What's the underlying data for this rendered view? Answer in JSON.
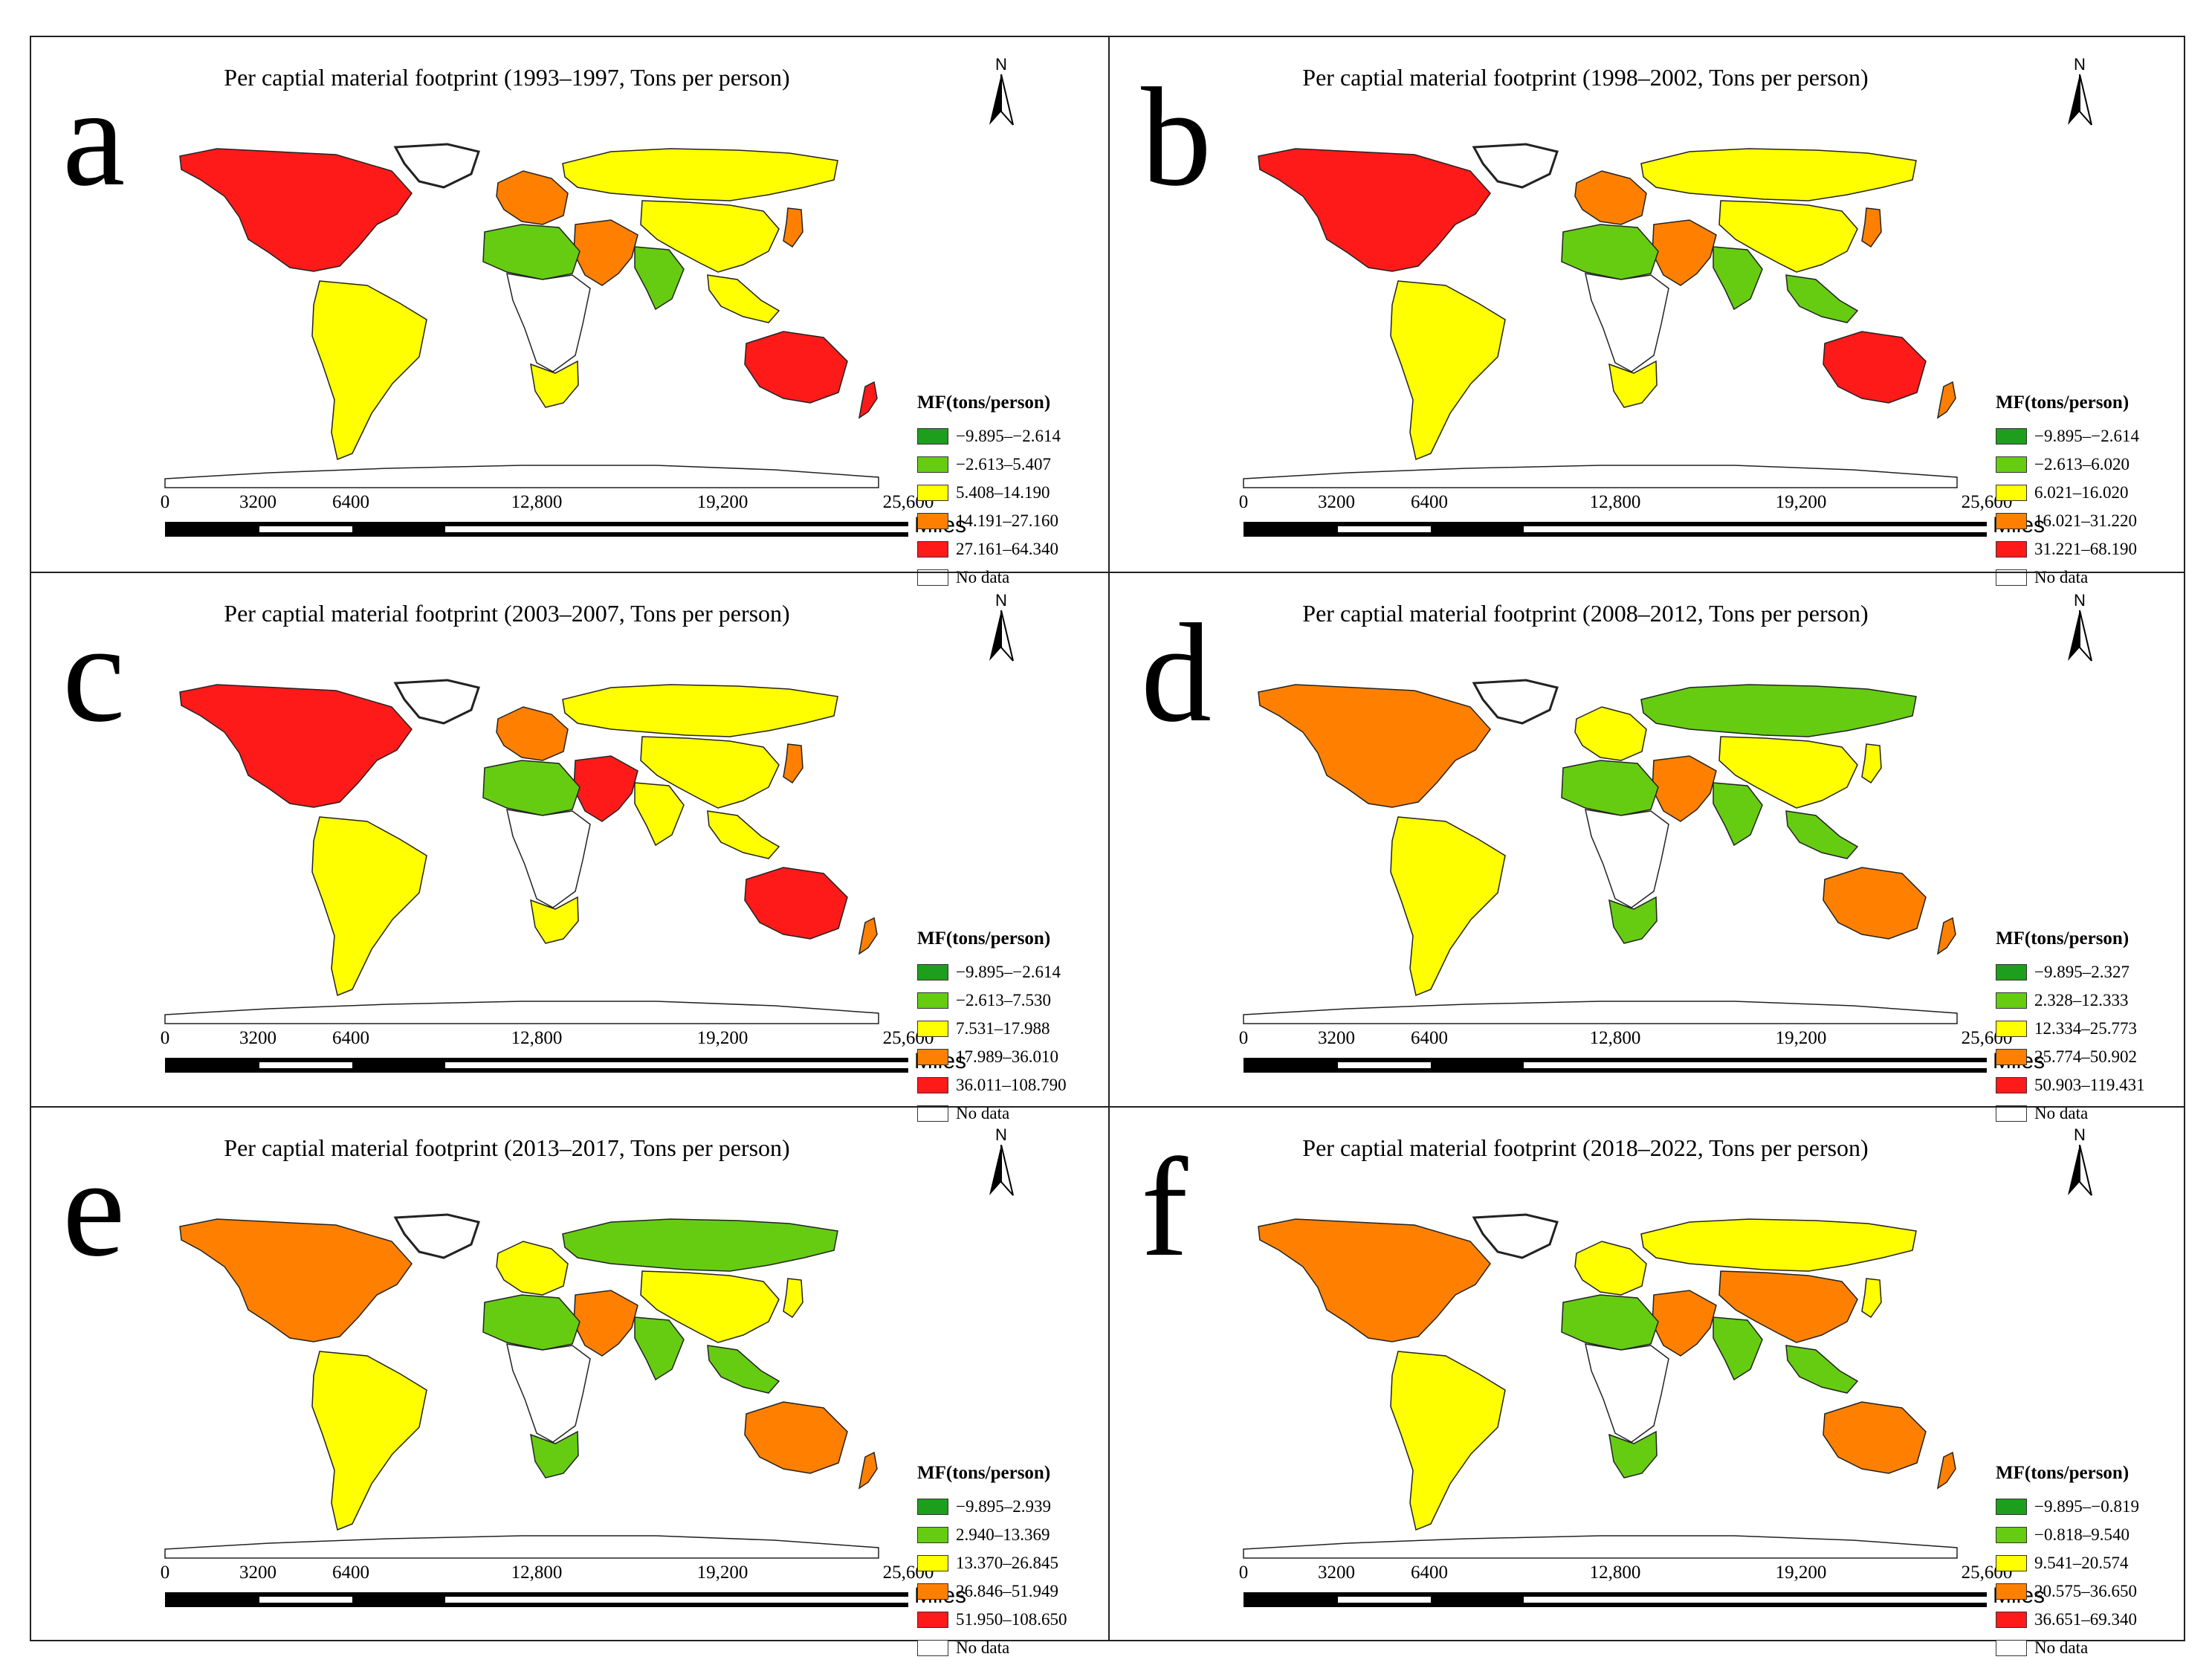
{
  "figure": {
    "legend_title": "MF(tons/person)",
    "no_data_label": "No data",
    "scale_ticks": [
      "0",
      "3200",
      "6400",
      "12,800",
      "19,200",
      "25,600"
    ],
    "scale_unit": "Miles",
    "north_label": "N",
    "colors": {
      "class1": "#1d9e1d",
      "class2": "#66cc12",
      "class3": "#ffff00",
      "class4": "#ff8000",
      "class5": "#ff1a1a",
      "no_data": "#ffffff"
    }
  },
  "panels": [
    {
      "letter": "a",
      "title": "Per captial material footprint (1993–1997, Tons per person)",
      "legend": [
        "−9.895–−2.614",
        "−2.613–5.407",
        "5.408–14.190",
        "14.191–27.160",
        "27.161–64.340"
      ]
    },
    {
      "letter": "b",
      "title": "Per captial material footprint (1998–2002, Tons per person)",
      "legend": [
        "−9.895–−2.614",
        "−2.613–6.020",
        "6.021–16.020",
        "16.021–31.220",
        "31.221–68.190"
      ]
    },
    {
      "letter": "c",
      "title": "Per captial material footprint (2003–2007, Tons per person)",
      "legend": [
        "−9.895–−2.614",
        "−2.613–7.530",
        "7.531–17.988",
        "17.989–36.010",
        "36.011–108.790"
      ]
    },
    {
      "letter": "d",
      "title": "Per captial material footprint (2008–2012, Tons per person)",
      "legend": [
        "−9.895–2.327",
        "2.328–12.333",
        "12.334–25.773",
        "25.774–50.902",
        "50.903–119.431"
      ]
    },
    {
      "letter": "e",
      "title": "Per captial material footprint (2013–2017, Tons per person)",
      "legend": [
        "−9.895–2.939",
        "2.940–13.369",
        "13.370–26.845",
        "26.846–51.949",
        "51.950–108.650"
      ]
    },
    {
      "letter": "f",
      "title": "Per captial material footprint (2018–2022, Tons per person)",
      "legend": [
        "−9.895–−0.819",
        "−0.818–9.540",
        "9.541–20.574",
        "20.575–36.650",
        "36.651–69.340"
      ]
    }
  ],
  "region_classes": [
    {
      "na": 5,
      "sam": 3,
      "eu": 4,
      "rus": 3,
      "asia": 3,
      "india": 2,
      "mideast": 4,
      "afr_n": 2,
      "safr": 3,
      "aus": 5,
      "nz": 5,
      "japan": 4,
      "sea": 3
    },
    {
      "na": 5,
      "sam": 3,
      "eu": 4,
      "rus": 3,
      "asia": 3,
      "india": 2,
      "mideast": 4,
      "afr_n": 2,
      "safr": 3,
      "aus": 5,
      "nz": 4,
      "japan": 4,
      "sea": 2
    },
    {
      "na": 5,
      "sam": 3,
      "eu": 4,
      "rus": 3,
      "asia": 3,
      "india": 3,
      "mideast": 5,
      "afr_n": 2,
      "safr": 3,
      "aus": 5,
      "nz": 4,
      "japan": 4,
      "sea": 3
    },
    {
      "na": 4,
      "sam": 3,
      "eu": 3,
      "rus": 2,
      "asia": 3,
      "india": 2,
      "mideast": 4,
      "afr_n": 2,
      "safr": 2,
      "aus": 4,
      "nz": 4,
      "japan": 3,
      "sea": 2
    },
    {
      "na": 4,
      "sam": 3,
      "eu": 3,
      "rus": 2,
      "asia": 3,
      "india": 2,
      "mideast": 4,
      "afr_n": 2,
      "safr": 2,
      "aus": 4,
      "nz": 4,
      "japan": 3,
      "sea": 2
    },
    {
      "na": 4,
      "sam": 3,
      "eu": 3,
      "rus": 3,
      "asia": 4,
      "india": 2,
      "mideast": 4,
      "afr_n": 2,
      "safr": 2,
      "aus": 4,
      "nz": 4,
      "japan": 3,
      "sea": 2
    }
  ]
}
